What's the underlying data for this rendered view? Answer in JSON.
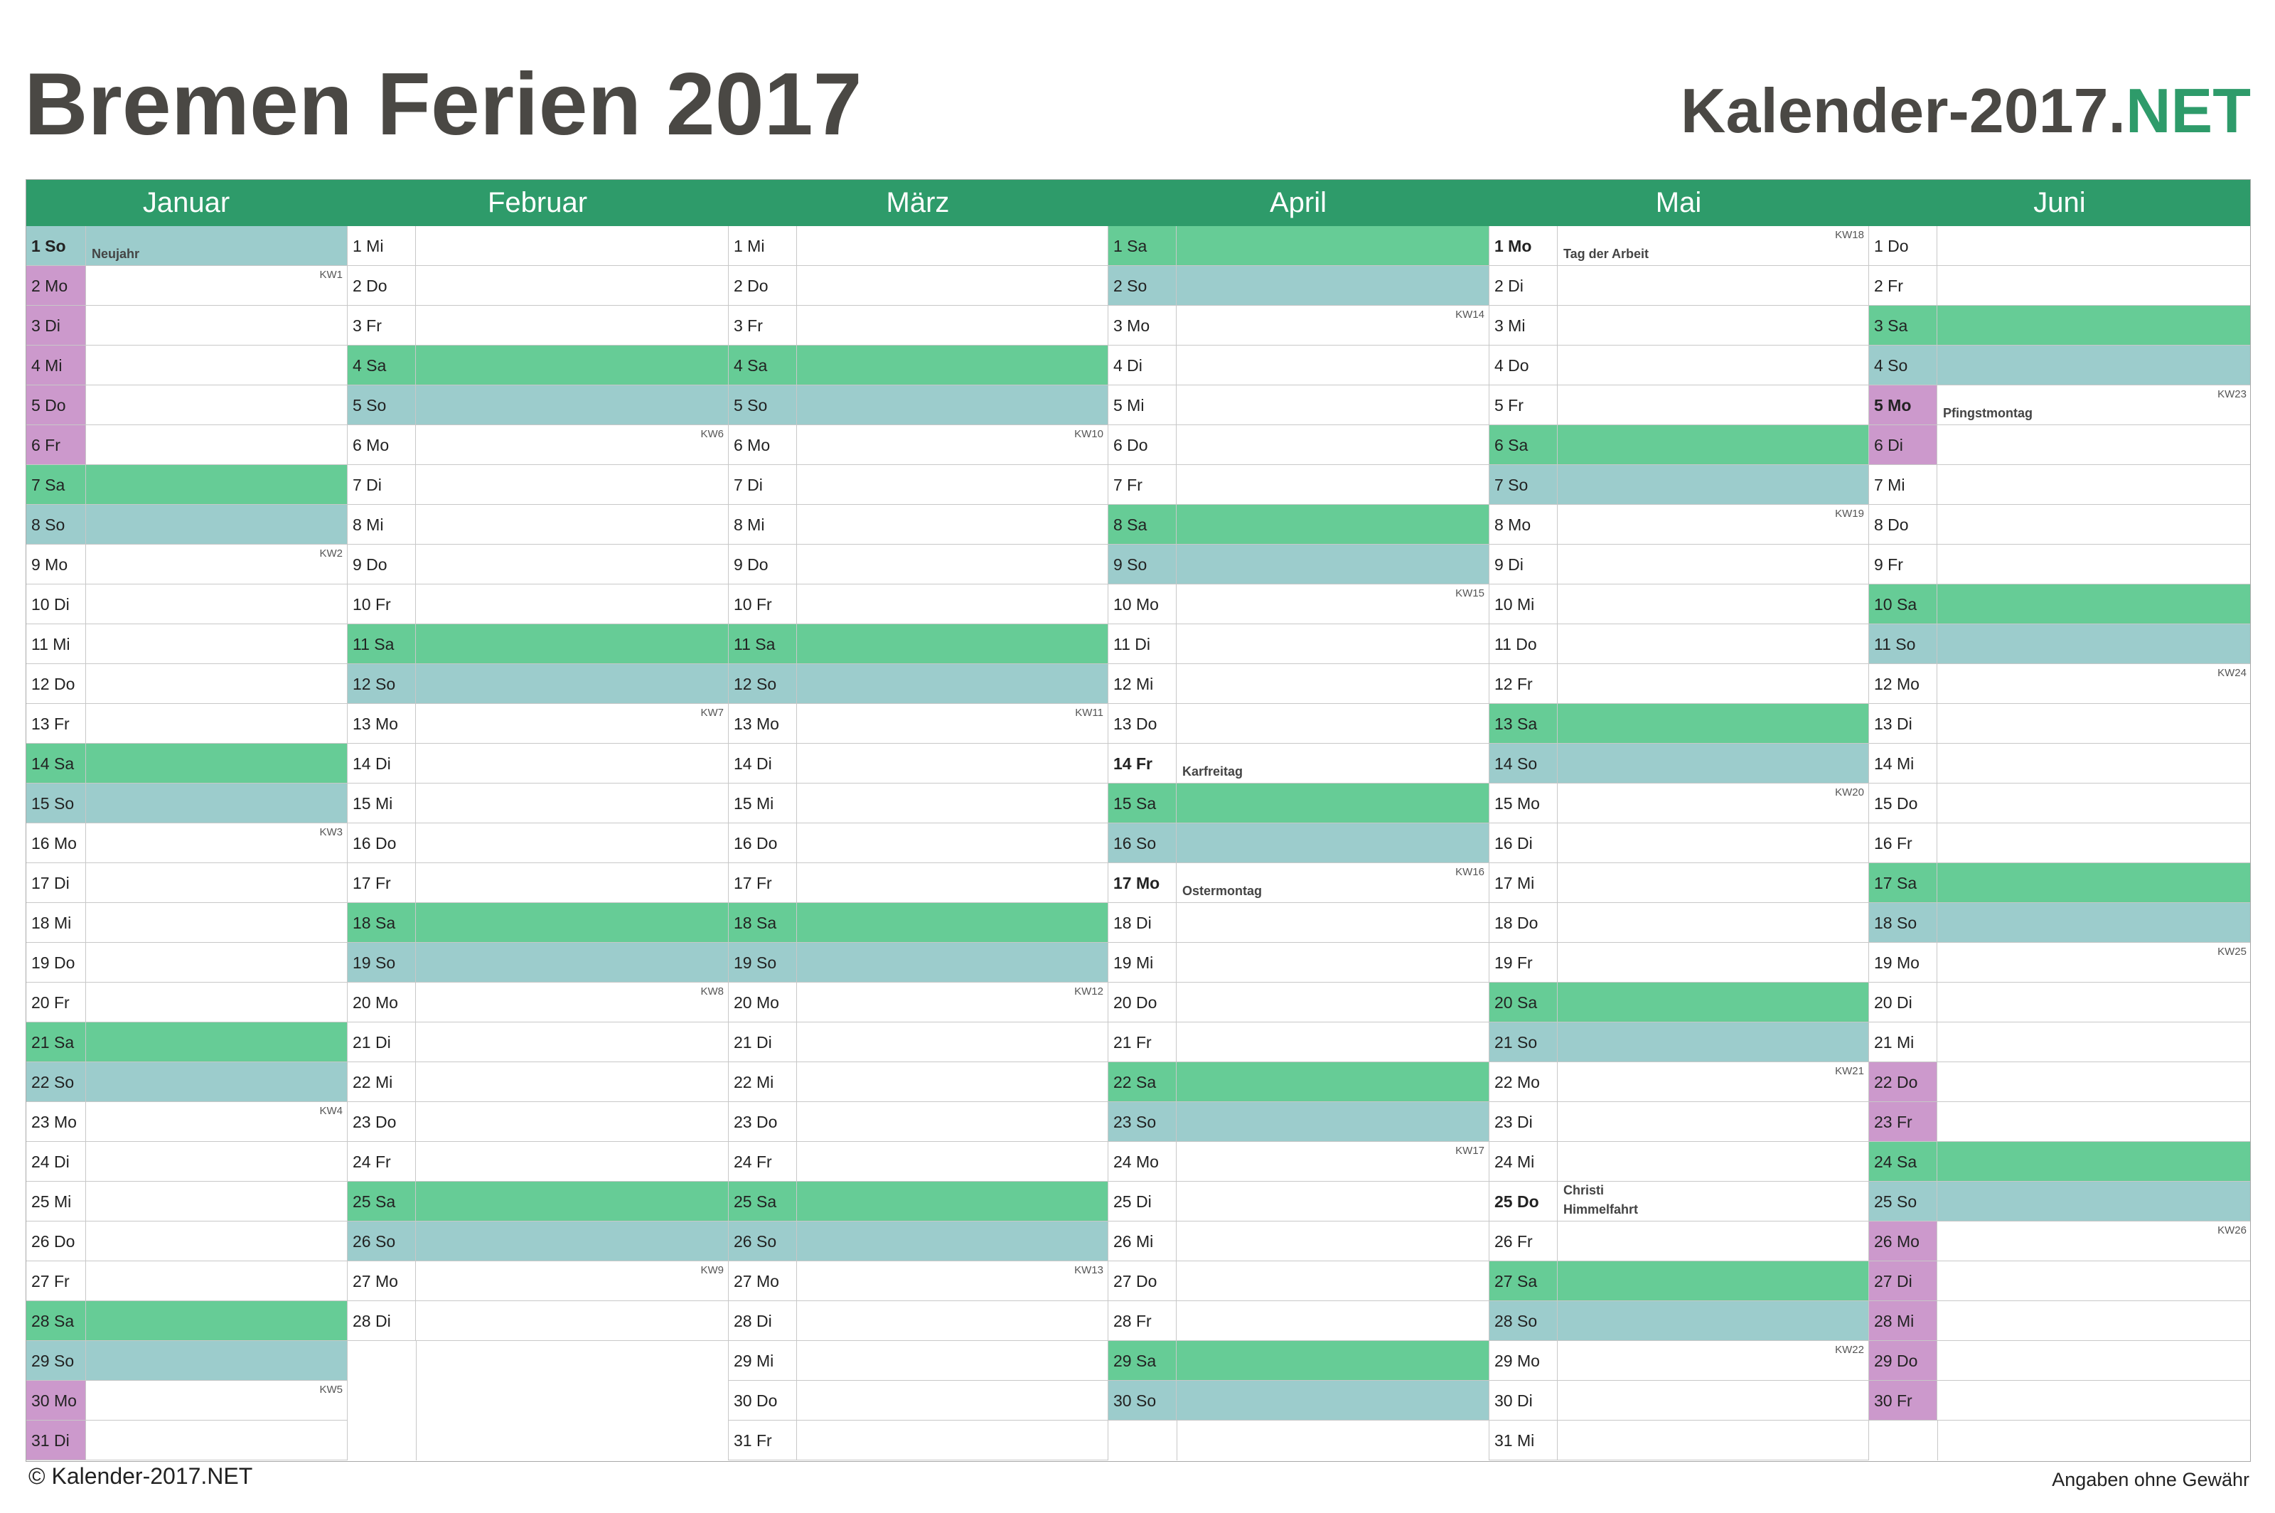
{
  "title": "Bremen Ferien 2017",
  "brand": {
    "main": "Kalender-2017.",
    "accent": "NET"
  },
  "footer": {
    "left": "© Kalender-2017.NET",
    "right": "Angaben ohne Gewähr"
  },
  "colors": {
    "header": "#2e9b6a",
    "saturday": "#66cc96",
    "sunday": "#9ccccc",
    "school_holiday": "#cc99cc",
    "title": "#4a4844"
  },
  "months": [
    {
      "name": "Januar",
      "days": [
        {
          "label": "1 So",
          "type": "so",
          "holiday": "Neujahr",
          "public": true
        },
        {
          "label": "2 Mo",
          "type": "wd",
          "vac": true,
          "kw": "KW1"
        },
        {
          "label": "3 Di",
          "type": "wd",
          "vac": true
        },
        {
          "label": "4 Mi",
          "type": "wd",
          "vac": true
        },
        {
          "label": "5 Do",
          "type": "wd",
          "vac": true
        },
        {
          "label": "6 Fr",
          "type": "wd",
          "vac": true
        },
        {
          "label": "7 Sa",
          "type": "sa"
        },
        {
          "label": "8 So",
          "type": "so"
        },
        {
          "label": "9 Mo",
          "type": "wd",
          "kw": "KW2"
        },
        {
          "label": "10 Di",
          "type": "wd"
        },
        {
          "label": "11 Mi",
          "type": "wd"
        },
        {
          "label": "12 Do",
          "type": "wd"
        },
        {
          "label": "13 Fr",
          "type": "wd"
        },
        {
          "label": "14 Sa",
          "type": "sa"
        },
        {
          "label": "15 So",
          "type": "so"
        },
        {
          "label": "16 Mo",
          "type": "wd",
          "kw": "KW3"
        },
        {
          "label": "17 Di",
          "type": "wd"
        },
        {
          "label": "18 Mi",
          "type": "wd"
        },
        {
          "label": "19 Do",
          "type": "wd"
        },
        {
          "label": "20 Fr",
          "type": "wd"
        },
        {
          "label": "21 Sa",
          "type": "sa"
        },
        {
          "label": "22 So",
          "type": "so"
        },
        {
          "label": "23 Mo",
          "type": "wd",
          "kw": "KW4"
        },
        {
          "label": "24 Di",
          "type": "wd"
        },
        {
          "label": "25 Mi",
          "type": "wd"
        },
        {
          "label": "26 Do",
          "type": "wd"
        },
        {
          "label": "27 Fr",
          "type": "wd"
        },
        {
          "label": "28 Sa",
          "type": "sa"
        },
        {
          "label": "29 So",
          "type": "so"
        },
        {
          "label": "30 Mo",
          "type": "wd",
          "vac": true,
          "kw": "KW5"
        },
        {
          "label": "31 Di",
          "type": "wd",
          "vac": true
        }
      ]
    },
    {
      "name": "Februar",
      "days": [
        {
          "label": "1 Mi",
          "type": "wd"
        },
        {
          "label": "2 Do",
          "type": "wd"
        },
        {
          "label": "3 Fr",
          "type": "wd"
        },
        {
          "label": "4 Sa",
          "type": "sa"
        },
        {
          "label": "5 So",
          "type": "so"
        },
        {
          "label": "6 Mo",
          "type": "wd",
          "kw": "KW6"
        },
        {
          "label": "7 Di",
          "type": "wd"
        },
        {
          "label": "8 Mi",
          "type": "wd"
        },
        {
          "label": "9 Do",
          "type": "wd"
        },
        {
          "label": "10 Fr",
          "type": "wd"
        },
        {
          "label": "11 Sa",
          "type": "sa"
        },
        {
          "label": "12 So",
          "type": "so"
        },
        {
          "label": "13 Mo",
          "type": "wd",
          "kw": "KW7"
        },
        {
          "label": "14 Di",
          "type": "wd"
        },
        {
          "label": "15 Mi",
          "type": "wd"
        },
        {
          "label": "16 Do",
          "type": "wd"
        },
        {
          "label": "17 Fr",
          "type": "wd"
        },
        {
          "label": "18 Sa",
          "type": "sa"
        },
        {
          "label": "19 So",
          "type": "so"
        },
        {
          "label": "20 Mo",
          "type": "wd",
          "kw": "KW8"
        },
        {
          "label": "21 Di",
          "type": "wd"
        },
        {
          "label": "22 Mi",
          "type": "wd"
        },
        {
          "label": "23 Do",
          "type": "wd"
        },
        {
          "label": "24 Fr",
          "type": "wd"
        },
        {
          "label": "25 Sa",
          "type": "sa"
        },
        {
          "label": "26 So",
          "type": "so"
        },
        {
          "label": "27 Mo",
          "type": "wd",
          "kw": "KW9"
        },
        {
          "label": "28 Di",
          "type": "wd"
        }
      ]
    },
    {
      "name": "März",
      "days": [
        {
          "label": "1 Mi",
          "type": "wd"
        },
        {
          "label": "2 Do",
          "type": "wd"
        },
        {
          "label": "3 Fr",
          "type": "wd"
        },
        {
          "label": "4 Sa",
          "type": "sa"
        },
        {
          "label": "5 So",
          "type": "so"
        },
        {
          "label": "6 Mo",
          "type": "wd",
          "kw": "KW10"
        },
        {
          "label": "7 Di",
          "type": "wd"
        },
        {
          "label": "8 Mi",
          "type": "wd"
        },
        {
          "label": "9 Do",
          "type": "wd"
        },
        {
          "label": "10 Fr",
          "type": "wd"
        },
        {
          "label": "11 Sa",
          "type": "sa"
        },
        {
          "label": "12 So",
          "type": "so"
        },
        {
          "label": "13 Mo",
          "type": "wd",
          "kw": "KW11"
        },
        {
          "label": "14 Di",
          "type": "wd"
        },
        {
          "label": "15 Mi",
          "type": "wd"
        },
        {
          "label": "16 Do",
          "type": "wd"
        },
        {
          "label": "17 Fr",
          "type": "wd"
        },
        {
          "label": "18 Sa",
          "type": "sa"
        },
        {
          "label": "19 So",
          "type": "so"
        },
        {
          "label": "20 Mo",
          "type": "wd",
          "kw": "KW12"
        },
        {
          "label": "21 Di",
          "type": "wd"
        },
        {
          "label": "22 Mi",
          "type": "wd"
        },
        {
          "label": "23 Do",
          "type": "wd"
        },
        {
          "label": "24 Fr",
          "type": "wd"
        },
        {
          "label": "25 Sa",
          "type": "sa"
        },
        {
          "label": "26 So",
          "type": "so"
        },
        {
          "label": "27 Mo",
          "type": "wd",
          "kw": "KW13"
        },
        {
          "label": "28 Di",
          "type": "wd"
        },
        {
          "label": "29 Mi",
          "type": "wd"
        },
        {
          "label": "30 Do",
          "type": "wd"
        },
        {
          "label": "31 Fr",
          "type": "wd"
        }
      ]
    },
    {
      "name": "April",
      "days": [
        {
          "label": "1 Sa",
          "type": "sa"
        },
        {
          "label": "2 So",
          "type": "so"
        },
        {
          "label": "3 Mo",
          "type": "wd",
          "kw": "KW14"
        },
        {
          "label": "4 Di",
          "type": "wd"
        },
        {
          "label": "5 Mi",
          "type": "wd"
        },
        {
          "label": "6 Do",
          "type": "wd"
        },
        {
          "label": "7 Fr",
          "type": "wd"
        },
        {
          "label": "8 Sa",
          "type": "sa"
        },
        {
          "label": "9 So",
          "type": "so"
        },
        {
          "label": "10 Mo",
          "type": "wd",
          "kw": "KW15"
        },
        {
          "label": "11 Di",
          "type": "wd"
        },
        {
          "label": "12 Mi",
          "type": "wd"
        },
        {
          "label": "13 Do",
          "type": "wd"
        },
        {
          "label": "14 Fr",
          "type": "wd",
          "holiday": "Karfreitag",
          "public": true
        },
        {
          "label": "15 Sa",
          "type": "sa"
        },
        {
          "label": "16 So",
          "type": "so"
        },
        {
          "label": "17 Mo",
          "type": "wd",
          "holiday": "Ostermontag",
          "public": true,
          "kw": "KW16"
        },
        {
          "label": "18 Di",
          "type": "wd"
        },
        {
          "label": "19 Mi",
          "type": "wd"
        },
        {
          "label": "20 Do",
          "type": "wd"
        },
        {
          "label": "21 Fr",
          "type": "wd"
        },
        {
          "label": "22 Sa",
          "type": "sa"
        },
        {
          "label": "23 So",
          "type": "so"
        },
        {
          "label": "24 Mo",
          "type": "wd",
          "kw": "KW17"
        },
        {
          "label": "25 Di",
          "type": "wd"
        },
        {
          "label": "26 Mi",
          "type": "wd"
        },
        {
          "label": "27 Do",
          "type": "wd"
        },
        {
          "label": "28 Fr",
          "type": "wd"
        },
        {
          "label": "29 Sa",
          "type": "sa"
        },
        {
          "label": "30 So",
          "type": "so"
        }
      ]
    },
    {
      "name": "Mai",
      "days": [
        {
          "label": "1 Mo",
          "type": "wd",
          "holiday": "Tag der Arbeit",
          "public": true,
          "kw": "KW18"
        },
        {
          "label": "2 Di",
          "type": "wd"
        },
        {
          "label": "3 Mi",
          "type": "wd"
        },
        {
          "label": "4 Do",
          "type": "wd"
        },
        {
          "label": "5 Fr",
          "type": "wd"
        },
        {
          "label": "6 Sa",
          "type": "sa"
        },
        {
          "label": "7 So",
          "type": "so"
        },
        {
          "label": "8 Mo",
          "type": "wd",
          "kw": "KW19"
        },
        {
          "label": "9 Di",
          "type": "wd"
        },
        {
          "label": "10 Mi",
          "type": "wd"
        },
        {
          "label": "11 Do",
          "type": "wd"
        },
        {
          "label": "12 Fr",
          "type": "wd"
        },
        {
          "label": "13 Sa",
          "type": "sa"
        },
        {
          "label": "14 So",
          "type": "so"
        },
        {
          "label": "15 Mo",
          "type": "wd",
          "kw": "KW20"
        },
        {
          "label": "16 Di",
          "type": "wd"
        },
        {
          "label": "17 Mi",
          "type": "wd"
        },
        {
          "label": "18 Do",
          "type": "wd"
        },
        {
          "label": "19 Fr",
          "type": "wd"
        },
        {
          "label": "20 Sa",
          "type": "sa"
        },
        {
          "label": "21 So",
          "type": "so"
        },
        {
          "label": "22 Mo",
          "type": "wd",
          "kw": "KW21"
        },
        {
          "label": "23 Di",
          "type": "wd"
        },
        {
          "label": "24 Mi",
          "type": "wd"
        },
        {
          "label": "25 Do",
          "type": "wd",
          "holiday": "Christi",
          "holiday2": "Himmelfahrt",
          "public": true
        },
        {
          "label": "26 Fr",
          "type": "wd"
        },
        {
          "label": "27 Sa",
          "type": "sa"
        },
        {
          "label": "28 So",
          "type": "so"
        },
        {
          "label": "29 Mo",
          "type": "wd",
          "kw": "KW22"
        },
        {
          "label": "30 Di",
          "type": "wd"
        },
        {
          "label": "31 Mi",
          "type": "wd"
        }
      ]
    },
    {
      "name": "Juni",
      "days": [
        {
          "label": "1 Do",
          "type": "wd"
        },
        {
          "label": "2 Fr",
          "type": "wd"
        },
        {
          "label": "3 Sa",
          "type": "sa"
        },
        {
          "label": "4 So",
          "type": "so"
        },
        {
          "label": "5 Mo",
          "type": "wd",
          "vac": true,
          "holiday": "Pfingstmontag",
          "public": true,
          "kw": "KW23"
        },
        {
          "label": "6 Di",
          "type": "wd",
          "vac": true
        },
        {
          "label": "7 Mi",
          "type": "wd"
        },
        {
          "label": "8 Do",
          "type": "wd"
        },
        {
          "label": "9 Fr",
          "type": "wd"
        },
        {
          "label": "10 Sa",
          "type": "sa"
        },
        {
          "label": "11 So",
          "type": "so"
        },
        {
          "label": "12 Mo",
          "type": "wd",
          "kw": "KW24"
        },
        {
          "label": "13 Di",
          "type": "wd"
        },
        {
          "label": "14 Mi",
          "type": "wd"
        },
        {
          "label": "15 Do",
          "type": "wd"
        },
        {
          "label": "16 Fr",
          "type": "wd"
        },
        {
          "label": "17 Sa",
          "type": "sa"
        },
        {
          "label": "18 So",
          "type": "so"
        },
        {
          "label": "19 Mo",
          "type": "wd",
          "kw": "KW25"
        },
        {
          "label": "20 Di",
          "type": "wd"
        },
        {
          "label": "21 Mi",
          "type": "wd"
        },
        {
          "label": "22 Do",
          "type": "wd",
          "vac": true
        },
        {
          "label": "23 Fr",
          "type": "wd",
          "vac": true
        },
        {
          "label": "24 Sa",
          "type": "sa"
        },
        {
          "label": "25 So",
          "type": "so"
        },
        {
          "label": "26 Mo",
          "type": "wd",
          "vac": true,
          "kw": "KW26"
        },
        {
          "label": "27 Di",
          "type": "wd",
          "vac": true
        },
        {
          "label": "28 Mi",
          "type": "wd",
          "vac": true
        },
        {
          "label": "29 Do",
          "type": "wd",
          "vac": true
        },
        {
          "label": "30 Fr",
          "type": "wd",
          "vac": true
        }
      ]
    }
  ]
}
